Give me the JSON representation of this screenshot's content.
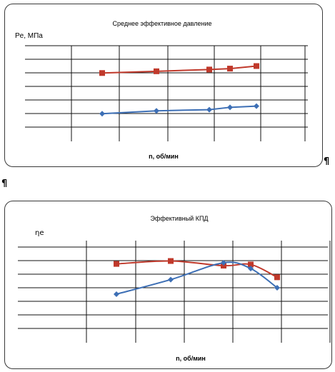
{
  "pilcrows": [
    "¶",
    "¶"
  ],
  "chart_data": [
    {
      "type": "line",
      "title": "Среднее эффективное давление",
      "ylabel": "Pe, МПа",
      "xlabel": "n, об/мин",
      "x_count": 5,
      "ylim": [
        0,
        7
      ],
      "grid": true,
      "series": [
        {
          "color": "#c0392b",
          "marker": "square",
          "values": [
            4.65,
            4.8,
            4.95,
            5.03,
            5.25
          ]
        },
        {
          "color": "#3d6fb5",
          "marker": "diamond",
          "values": [
            1.15,
            1.4,
            1.5,
            1.7,
            1.8
          ]
        }
      ]
    },
    {
      "type": "line",
      "title": "Эффективный  КПД",
      "ylabel": "ηe",
      "xlabel": "n, об/мин",
      "x_count": 5,
      "ylim": [
        0,
        7
      ],
      "grid": true,
      "series": [
        {
          "color": "#c0392b",
          "marker": "square",
          "values": [
            5.55,
            5.8,
            5.4,
            5.5,
            4.4
          ]
        },
        {
          "color": "#3d6fb5",
          "marker": "diamond",
          "values": [
            2.95,
            4.2,
            5.65,
            5.15,
            3.5
          ]
        }
      ]
    }
  ]
}
